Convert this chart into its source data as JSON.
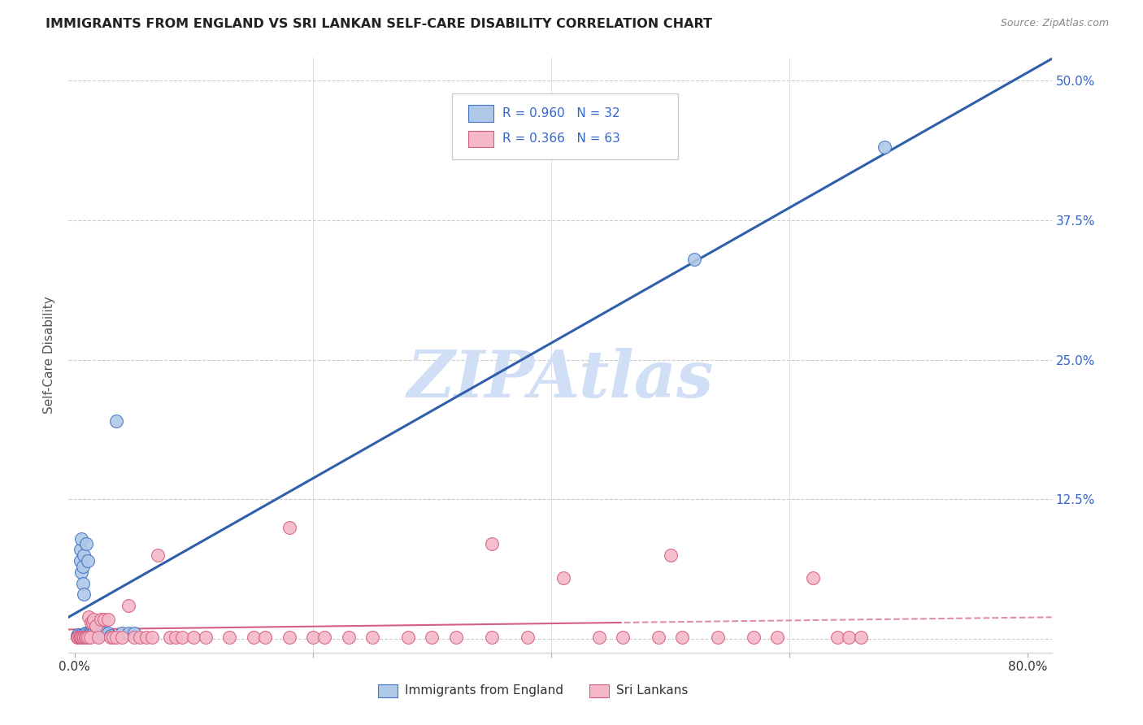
{
  "title": "IMMIGRANTS FROM ENGLAND VS SRI LANKAN SELF-CARE DISABILITY CORRELATION CHART",
  "source": "Source: ZipAtlas.com",
  "ylabel": "Self-Care Disability",
  "watermark": "ZIPAtlas",
  "legend1_label": "Immigrants from England",
  "legend2_label": "Sri Lankans",
  "R1": "0.960",
  "N1": "32",
  "R2": "0.366",
  "N2": "63",
  "color_blue": "#aec9e8",
  "color_blue_dark": "#4472c4",
  "color_blue_line": "#2f5faa",
  "color_pink": "#f4b8c8",
  "color_pink_dark": "#d46080",
  "color_pink_line": "#d46080",
  "color_watermark": "#d0dff5",
  "xlim": [
    -0.005,
    0.82
  ],
  "ylim": [
    -0.012,
    0.52
  ],
  "ytick_vals": [
    0.0,
    0.125,
    0.25,
    0.375,
    0.5
  ],
  "ytick_labels": [
    "",
    "12.5%",
    "25.0%",
    "37.5%",
    "50.0%"
  ],
  "xtick_vals": [
    0.0,
    0.2,
    0.4,
    0.6,
    0.8
  ],
  "xtick_labels": [
    "0.0%",
    "",
    "",
    "",
    "80.0%"
  ],
  "blue_scatter_x": [
    0.002,
    0.003,
    0.004,
    0.005,
    0.005,
    0.006,
    0.006,
    0.007,
    0.007,
    0.008,
    0.008,
    0.009,
    0.01,
    0.01,
    0.011,
    0.012,
    0.013,
    0.014,
    0.015,
    0.016,
    0.018,
    0.02,
    0.022,
    0.025,
    0.028,
    0.03,
    0.035,
    0.04,
    0.045,
    0.05,
    0.52,
    0.68
  ],
  "blue_scatter_y": [
    0.003,
    0.004,
    0.003,
    0.07,
    0.08,
    0.06,
    0.09,
    0.05,
    0.065,
    0.04,
    0.075,
    0.005,
    0.085,
    0.005,
    0.07,
    0.005,
    0.005,
    0.005,
    0.005,
    0.005,
    0.005,
    0.003,
    0.005,
    0.005,
    0.005,
    0.003,
    0.195,
    0.005,
    0.005,
    0.005,
    0.34,
    0.44
  ],
  "pink_scatter_x": [
    0.002,
    0.003,
    0.004,
    0.005,
    0.006,
    0.007,
    0.008,
    0.009,
    0.01,
    0.011,
    0.012,
    0.013,
    0.014,
    0.015,
    0.016,
    0.018,
    0.02,
    0.022,
    0.025,
    0.028,
    0.03,
    0.032,
    0.035,
    0.04,
    0.045,
    0.05,
    0.055,
    0.06,
    0.065,
    0.07,
    0.08,
    0.085,
    0.09,
    0.1,
    0.11,
    0.13,
    0.15,
    0.16,
    0.18,
    0.2,
    0.21,
    0.23,
    0.25,
    0.28,
    0.3,
    0.32,
    0.35,
    0.38,
    0.41,
    0.44,
    0.46,
    0.49,
    0.51,
    0.54,
    0.57,
    0.59,
    0.62,
    0.64,
    0.65,
    0.66,
    0.18,
    0.35,
    0.5
  ],
  "pink_scatter_y": [
    0.002,
    0.002,
    0.002,
    0.002,
    0.002,
    0.002,
    0.002,
    0.002,
    0.002,
    0.002,
    0.02,
    0.002,
    0.015,
    0.015,
    0.018,
    0.012,
    0.002,
    0.018,
    0.018,
    0.018,
    0.002,
    0.002,
    0.002,
    0.002,
    0.03,
    0.002,
    0.002,
    0.002,
    0.002,
    0.075,
    0.002,
    0.002,
    0.002,
    0.002,
    0.002,
    0.002,
    0.002,
    0.002,
    0.002,
    0.002,
    0.002,
    0.002,
    0.002,
    0.002,
    0.002,
    0.002,
    0.002,
    0.002,
    0.055,
    0.002,
    0.002,
    0.002,
    0.002,
    0.002,
    0.002,
    0.002,
    0.055,
    0.002,
    0.002,
    0.002,
    0.1,
    0.085,
    0.075
  ]
}
